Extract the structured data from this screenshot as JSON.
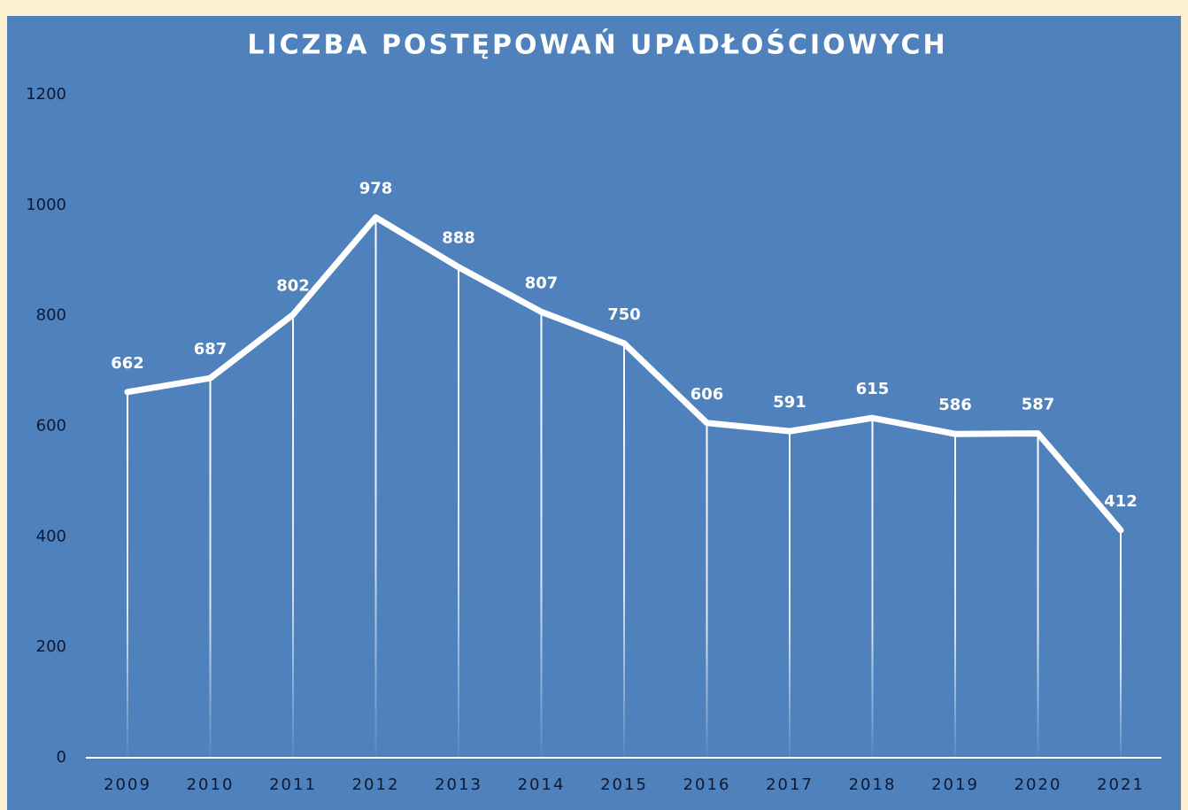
{
  "chart_data": {
    "type": "line",
    "title": "LICZBA POSTĘPOWAŃ UPADŁOŚCIOWYCH",
    "categories": [
      "2009",
      "2010",
      "2011",
      "2012",
      "2013",
      "2014",
      "2015",
      "2016",
      "2017",
      "2018",
      "2019",
      "2020",
      "2021"
    ],
    "values": [
      662,
      687,
      802,
      978,
      888,
      807,
      750,
      606,
      591,
      615,
      586,
      587,
      412
    ],
    "color": "#ffffff",
    "ylim": [
      0,
      1200
    ],
    "yticks": [
      0,
      200,
      400,
      600,
      800,
      1000,
      1200
    ],
    "grid": false,
    "drop_lines": true
  }
}
